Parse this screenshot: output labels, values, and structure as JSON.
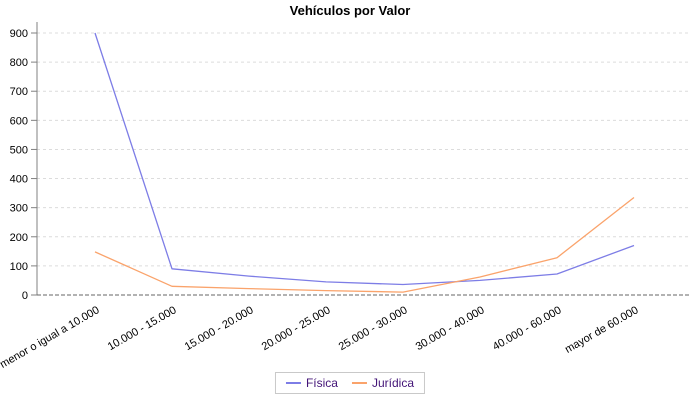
{
  "title": "Vehículos por Valor",
  "colors": {
    "background": "#ffffff",
    "title_text": "#000000",
    "axis_line": "#808080",
    "baseline": "#666666",
    "gridline": "#dcdcdc",
    "tick_text": "#000000",
    "legend_border": "#c9c9c9",
    "legend_text": "#431477",
    "series_fisica": "#7d7de6",
    "series_juridica": "#faa36b"
  },
  "legend": {
    "items": [
      {
        "label": "Física",
        "color": "#7d7de6"
      },
      {
        "label": "Jurídica",
        "color": "#faa36b"
      }
    ]
  },
  "chart_data": {
    "type": "line",
    "title": "Vehículos por Valor",
    "xlabel": "",
    "ylabel": "",
    "categories": [
      "menor o igual a 10.000",
      "10.000 - 15.000",
      "15.000 - 20.000",
      "20.000 - 25.000",
      "25.000 - 30.000",
      "30.000 - 40.000",
      "40.000 - 60.000",
      "mayor de 60.000"
    ],
    "series": [
      {
        "name": "Física",
        "color": "#7d7de6",
        "values": [
          900,
          90,
          65,
          45,
          36,
          50,
          72,
          170
        ]
      },
      {
        "name": "Jurídica",
        "color": "#faa36b",
        "values": [
          148,
          30,
          22,
          15,
          10,
          62,
          128,
          335
        ]
      }
    ],
    "ylim": [
      0,
      900
    ],
    "yticks": [
      0,
      100,
      200,
      300,
      400,
      500,
      600,
      700,
      800,
      900
    ],
    "grid": true,
    "grid_style": "dashed",
    "legend_position": "bottom",
    "x_tick_rotation_deg": -30
  }
}
